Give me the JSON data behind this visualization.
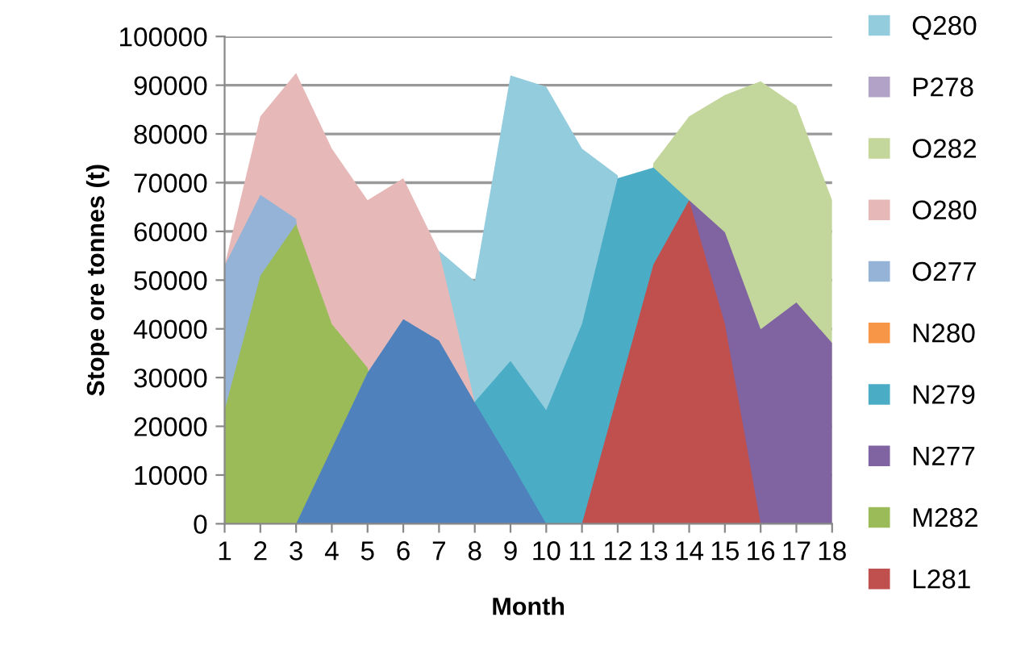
{
  "chart_data": {
    "type": "area",
    "xlabel": "Month",
    "ylabel": "Stope ore tonnes (t)",
    "categories": [
      "1",
      "2",
      "3",
      "4",
      "5",
      "6",
      "7",
      "8",
      "9",
      "10",
      "11",
      "12",
      "13",
      "14",
      "15",
      "16",
      "17",
      "18"
    ],
    "ylim": [
      0,
      100000
    ],
    "yticks": [
      0,
      10000,
      20000,
      30000,
      40000,
      50000,
      60000,
      70000,
      80000,
      90000,
      100000
    ],
    "grid": "y",
    "legend": "right",
    "series": [
      {
        "name": "Q280",
        "color": "#93cddd",
        "values": [
          null,
          null,
          null,
          null,
          null,
          0,
          56000,
          49800,
          92000,
          89700,
          77000,
          71500,
          0,
          null,
          null,
          null,
          null,
          null
        ]
      },
      {
        "name": "P278",
        "color": "#b3a2c7",
        "values": [
          null,
          null,
          null,
          null,
          null,
          null,
          null,
          null,
          null,
          null,
          null,
          null,
          null,
          null,
          null,
          null,
          null,
          null
        ]
      },
      {
        "name": "O282",
        "color": "#c3d69b",
        "values": [
          null,
          null,
          null,
          null,
          null,
          null,
          null,
          null,
          null,
          null,
          null,
          0,
          74000,
          83600,
          88000,
          90800,
          85800,
          66400
        ]
      },
      {
        "name": "O280",
        "color": "#e6b9b8",
        "values": [
          53000,
          83600,
          92500,
          77000,
          66400,
          70900,
          55900,
          25000,
          0,
          null,
          null,
          null,
          null,
          null,
          null,
          null,
          null,
          null
        ]
      },
      {
        "name": "O277",
        "color": "#95b3d7",
        "values": [
          53000,
          67500,
          62600,
          0,
          null,
          null,
          null,
          null,
          null,
          null,
          null,
          null,
          null,
          null,
          null,
          null,
          null,
          null
        ]
      },
      {
        "name": "N280",
        "color": "#f79646",
        "values": [
          null,
          null,
          null,
          null,
          null,
          null,
          null,
          null,
          null,
          null,
          null,
          null,
          null,
          null,
          null,
          null,
          null,
          null
        ]
      },
      {
        "name": "N279",
        "color": "#4bacc6",
        "values": [
          null,
          null,
          null,
          null,
          null,
          null,
          0,
          25000,
          33400,
          23300,
          41000,
          70900,
          73100,
          66400,
          0,
          null,
          null,
          null
        ]
      },
      {
        "name": "N277",
        "color": "#8064a2",
        "values": [
          null,
          null,
          null,
          null,
          null,
          null,
          null,
          null,
          null,
          null,
          null,
          null,
          0,
          66400,
          59800,
          39900,
          45400,
          37100
        ]
      },
      {
        "name": "M282",
        "color": "#9bbb59",
        "values": [
          23300,
          50900,
          61500,
          41000,
          32000,
          0,
          null,
          null,
          null,
          null,
          null,
          null,
          null,
          null,
          null,
          null,
          null,
          null
        ]
      },
      {
        "name": "L281",
        "color": "#c0504d",
        "values": [
          null,
          null,
          null,
          null,
          null,
          null,
          null,
          null,
          null,
          null,
          0,
          26600,
          53200,
          66400,
          41000,
          0,
          null,
          null
        ]
      },
      {
        "color": "#4f81bd",
        "values": [
          null,
          null,
          0,
          15500,
          31000,
          42000,
          37600,
          24900,
          12700,
          0,
          null,
          null,
          null,
          null,
          null,
          null,
          null,
          null
        ]
      }
    ]
  }
}
